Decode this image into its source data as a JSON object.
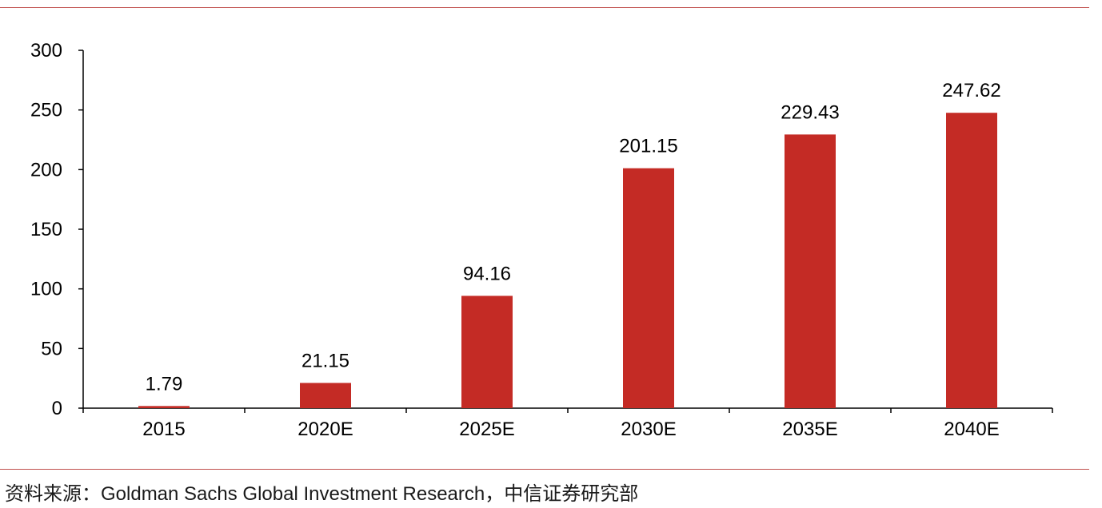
{
  "chart_data": {
    "type": "bar",
    "categories": [
      "2015",
      "2020E",
      "2025E",
      "2030E",
      "2035E",
      "2040E"
    ],
    "values": [
      1.79,
      21.15,
      94.16,
      201.15,
      229.43,
      247.62
    ],
    "data_labels": [
      "1.79",
      "21.15",
      "94.16",
      "201.15",
      "229.43",
      "247.62"
    ],
    "title": "",
    "xlabel": "",
    "ylabel": "",
    "ylim": [
      0,
      300
    ],
    "yticks": [
      0,
      50,
      100,
      150,
      200,
      250,
      300
    ],
    "grid": false,
    "bar_color": "#c42b25"
  },
  "source": {
    "text": "资料来源：Goldman Sachs Global Investment Research，中信证券研究部"
  },
  "colors": {
    "rule": "#c0504d"
  }
}
